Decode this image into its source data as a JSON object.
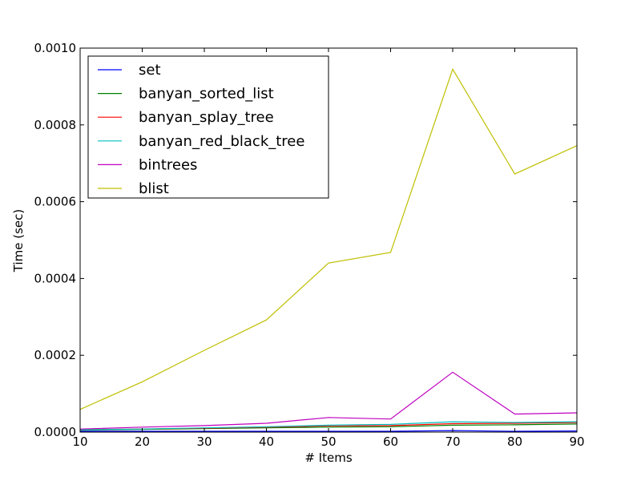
{
  "chart_data": {
    "type": "line",
    "title": "",
    "xlabel": "# Items",
    "ylabel": "Time (sec)",
    "x": [
      10,
      20,
      30,
      40,
      50,
      60,
      70,
      80,
      90
    ],
    "xlim": [
      10,
      90
    ],
    "ylim": [
      0,
      0.001
    ],
    "xticks": [
      "10",
      "20",
      "30",
      "40",
      "50",
      "60",
      "70",
      "80",
      "90"
    ],
    "yticks": [
      "0.0000",
      "0.0002",
      "0.0004",
      "0.0006",
      "0.0008",
      "0.0010"
    ],
    "grid": false,
    "legend_position": "top-left",
    "series": [
      {
        "name": "set",
        "color": "#0000ff",
        "values": [
          2e-06,
          2e-06,
          2e-06,
          2e-06,
          2e-06,
          2e-06,
          4e-06,
          2e-06,
          3e-06
        ]
      },
      {
        "name": "banyan_sorted_list",
        "color": "#008000",
        "values": [
          5e-06,
          7e-06,
          9e-06,
          1.1e-05,
          1.3e-05,
          1.4e-05,
          1.8e-05,
          1.9e-05,
          2.1e-05
        ]
      },
      {
        "name": "banyan_splay_tree",
        "color": "#ff0000",
        "values": [
          6e-06,
          8e-06,
          1e-05,
          1.3e-05,
          1.6e-05,
          1.7e-05,
          2.2e-05,
          2.3e-05,
          2.5e-05
        ]
      },
      {
        "name": "banyan_red_black_tree",
        "color": "#00bfbf",
        "values": [
          6e-06,
          8e-06,
          1.1e-05,
          1.4e-05,
          1.8e-05,
          2e-05,
          2.7e-05,
          2.5e-05,
          2.7e-05
        ]
      },
      {
        "name": "bintrees",
        "color": "#bf00bf",
        "values": [
          8e-06,
          1.3e-05,
          1.7e-05,
          2.3e-05,
          3.8e-05,
          3.4e-05,
          0.000156,
          4.7e-05,
          5e-05
        ]
      },
      {
        "name": "blist",
        "color": "#bfbf00",
        "values": [
          5.9e-05,
          0.000131,
          0.000213,
          0.000292,
          0.00044,
          0.000468,
          0.000945,
          0.000672,
          0.000746
        ]
      }
    ]
  }
}
